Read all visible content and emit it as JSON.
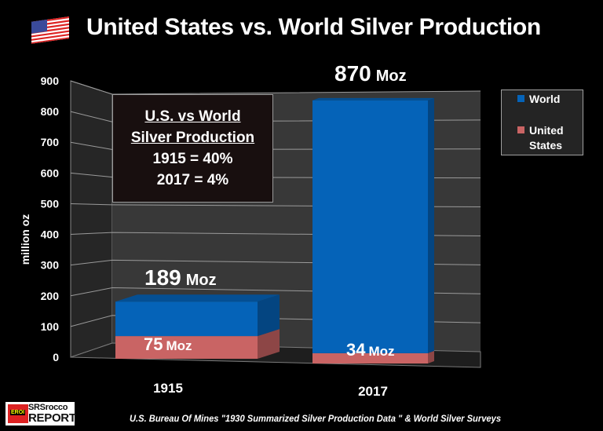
{
  "title": "United States vs. World Silver Production",
  "flag_icon": "us-flag-icon",
  "annotation": {
    "line1": "U.S. vs World",
    "line2": "Silver Production",
    "line3": "1915 = 40%",
    "line4": "2017 =  4%"
  },
  "legend": {
    "world": "World",
    "us_line1": "United",
    "us_line2": "States"
  },
  "source": "U.S. Bureau Of Mines \"1930 Summarized Silver Production Data \"  & World Silver Surveys",
  "logo": {
    "emblem": "EROI",
    "line1": "SRSrocco",
    "line2": "REPORT"
  },
  "colors": {
    "world": "#0563b8",
    "us": "#c96464",
    "background": "#000000"
  },
  "chart_data": {
    "type": "bar",
    "stacked": true,
    "three_d": true,
    "title": "United States vs. World Silver Production",
    "xlabel": "",
    "ylabel": "million oz",
    "ylim": [
      0,
      900
    ],
    "yticks": [
      "0",
      "100",
      "200",
      "300",
      "400",
      "500",
      "600",
      "700",
      "800",
      "900"
    ],
    "grid": true,
    "legend_position": "right",
    "categories": [
      "1915",
      "2017"
    ],
    "series": [
      {
        "name": "United States",
        "values": [
          75,
          34
        ]
      },
      {
        "name": "World",
        "values": [
          189,
          870
        ]
      }
    ],
    "data_labels": {
      "world": [
        {
          "num": "189",
          "unit": "Moz"
        },
        {
          "num": "870",
          "unit": "Moz"
        }
      ],
      "us": [
        {
          "num": "75",
          "unit": "Moz"
        },
        {
          "num": "34",
          "unit": "Moz"
        }
      ]
    }
  }
}
